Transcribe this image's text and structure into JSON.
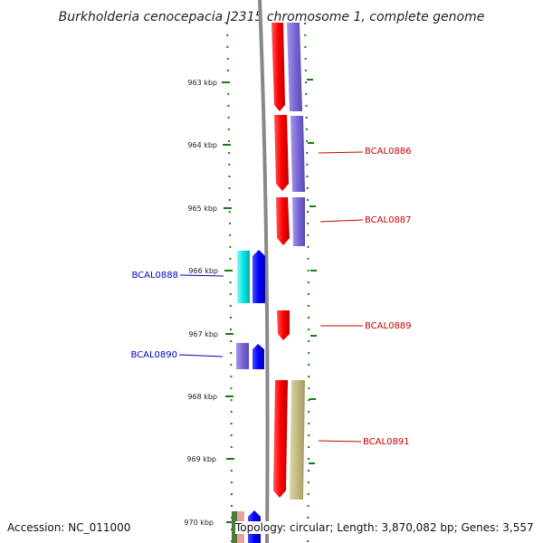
{
  "title": "Burkholderia cenocepacia J2315 chromosome 1, complete genome",
  "footer": {
    "accession": "Accession: NC_011000",
    "topology": "Topology: circular; Length: 3,870,082 bp; Genes: 3,557"
  },
  "ticks": [
    "963 kbp",
    "964 kbp",
    "965 kbp",
    "966 kbp",
    "967 kbp",
    "968 kbp",
    "969 kbp",
    "970 kbp"
  ],
  "gene_labels": {
    "right": [
      "BCAL0886",
      "BCAL0887",
      "BCAL0889",
      "BCAL0891"
    ],
    "left": [
      "BCAL0888",
      "BCAL0890"
    ]
  },
  "colors": {
    "forward_cds": "#ff0000",
    "cog_blue_purple": "#7a68d6",
    "cog_khaki": "#c3ba83",
    "reverse_cds": "#0000ff",
    "cog_cyan": "#00e5e5",
    "backbone": "#888888",
    "ticks": "#1a7a1a",
    "label_right": "#cc0000",
    "label_left": "#0000cc"
  }
}
